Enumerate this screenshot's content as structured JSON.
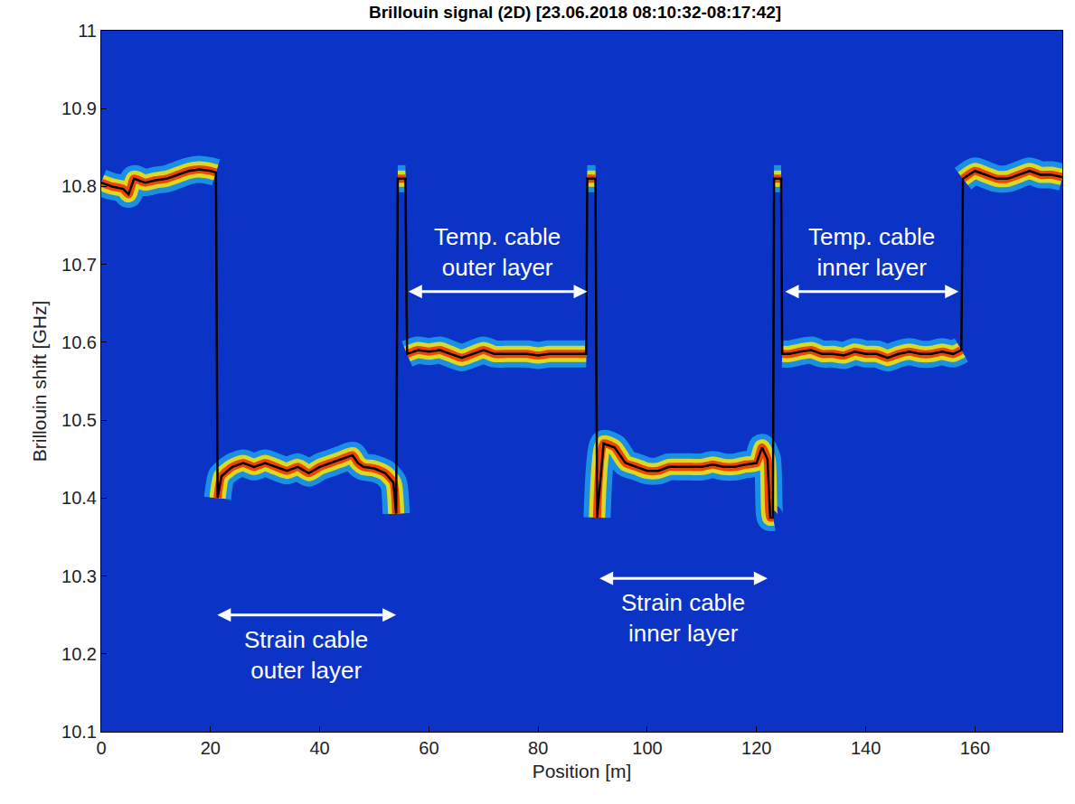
{
  "chart_data": {
    "type": "line",
    "title": "Brillouin signal (2D) [23.06.2018 08:10:32-08:17:42]",
    "x_label": "Position [m]",
    "y_label": "Brillouin shift [GHz]",
    "xlim": [
      0,
      176
    ],
    "xticks": [
      0,
      20,
      40,
      60,
      80,
      100,
      120,
      140,
      160
    ],
    "ylim": [
      10.1,
      11
    ],
    "yticks": [
      10.1,
      10.2,
      10.3,
      10.4,
      10.5,
      10.6,
      10.7,
      10.8,
      10.9,
      11
    ],
    "grid": false,
    "series": [
      {
        "color": "#000000",
        "x": [
          0,
          2,
          4,
          5,
          6,
          8,
          10,
          12,
          14,
          16,
          18,
          20,
          21,
          21.3,
          22,
          24,
          26,
          28,
          30,
          32,
          34,
          36,
          38,
          40,
          42,
          44,
          46,
          47,
          48,
          50,
          52,
          53.5,
          54,
          54.3,
          55.7,
          56,
          58,
          60,
          62,
          64,
          66,
          68,
          70,
          72,
          74,
          76,
          78,
          80,
          82,
          84,
          86,
          88,
          88.8,
          89,
          90.5,
          90.8,
          92,
          94,
          96,
          98,
          100,
          102,
          104,
          106,
          108,
          110,
          112,
          114,
          116,
          118,
          120,
          121,
          122,
          122.5,
          123,
          123.2,
          124.5,
          124.7,
          126,
          128,
          130,
          132,
          134,
          136,
          138,
          140,
          142,
          144,
          146,
          148,
          150,
          152,
          154,
          156,
          157.5,
          157.8,
          160,
          162,
          164,
          166,
          168,
          170,
          172,
          174,
          176
        ],
        "values": [
          10.805,
          10.8,
          10.797,
          10.79,
          10.81,
          10.805,
          10.808,
          10.81,
          10.815,
          10.82,
          10.822,
          10.82,
          10.818,
          10.4,
          10.428,
          10.44,
          10.445,
          10.44,
          10.445,
          10.44,
          10.435,
          10.44,
          10.432,
          10.44,
          10.445,
          10.45,
          10.455,
          10.445,
          10.44,
          10.438,
          10.432,
          10.42,
          10.38,
          10.81,
          10.81,
          10.585,
          10.59,
          10.588,
          10.59,
          10.585,
          10.58,
          10.585,
          10.59,
          10.585,
          10.585,
          10.585,
          10.585,
          10.583,
          10.585,
          10.585,
          10.585,
          10.585,
          10.585,
          10.81,
          10.81,
          10.375,
          10.47,
          10.465,
          10.445,
          10.44,
          10.435,
          10.435,
          10.44,
          10.44,
          10.44,
          10.44,
          10.443,
          10.44,
          10.44,
          10.443,
          10.445,
          10.465,
          10.45,
          10.375,
          10.375,
          10.81,
          10.81,
          10.585,
          10.585,
          10.588,
          10.59,
          10.585,
          10.585,
          10.583,
          10.588,
          10.585,
          10.585,
          10.58,
          10.585,
          10.588,
          10.585,
          10.585,
          10.588,
          10.585,
          10.59,
          10.81,
          10.82,
          10.815,
          10.81,
          10.81,
          10.815,
          10.82,
          10.815,
          10.815,
          10.812
        ]
      }
    ],
    "annotations": [
      {
        "text": "Strain cable\nouter layer",
        "x": [
          21,
          54
        ],
        "y": 10.25
      },
      {
        "text": "Temp. cable\nouter layer",
        "x": [
          56,
          89
        ],
        "y": 10.665
      },
      {
        "text": "Strain cable\ninner layer",
        "x": [
          91,
          122
        ],
        "y": 10.297
      },
      {
        "text": "Temp. cable\ninner layer",
        "x": [
          125,
          157
        ],
        "y": 10.665
      }
    ]
  }
}
